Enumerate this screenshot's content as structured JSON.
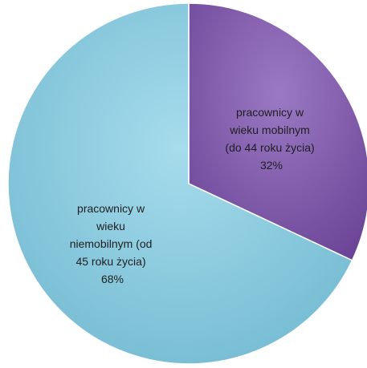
{
  "chart_data": {
    "type": "pie",
    "slices": [
      {
        "label_lines": [
          "pracownicy w",
          "wieku mobilnym",
          "(do 44 roku życia)"
        ],
        "value": 32,
        "value_label": "32%",
        "color": "#7b54a6"
      },
      {
        "label_lines": [
          "pracownicy w",
          "wieku",
          "niemobilnym (od",
          "45 roku życia)"
        ],
        "value": 68,
        "value_label": "68%",
        "color": "#7fc6dc"
      }
    ]
  }
}
